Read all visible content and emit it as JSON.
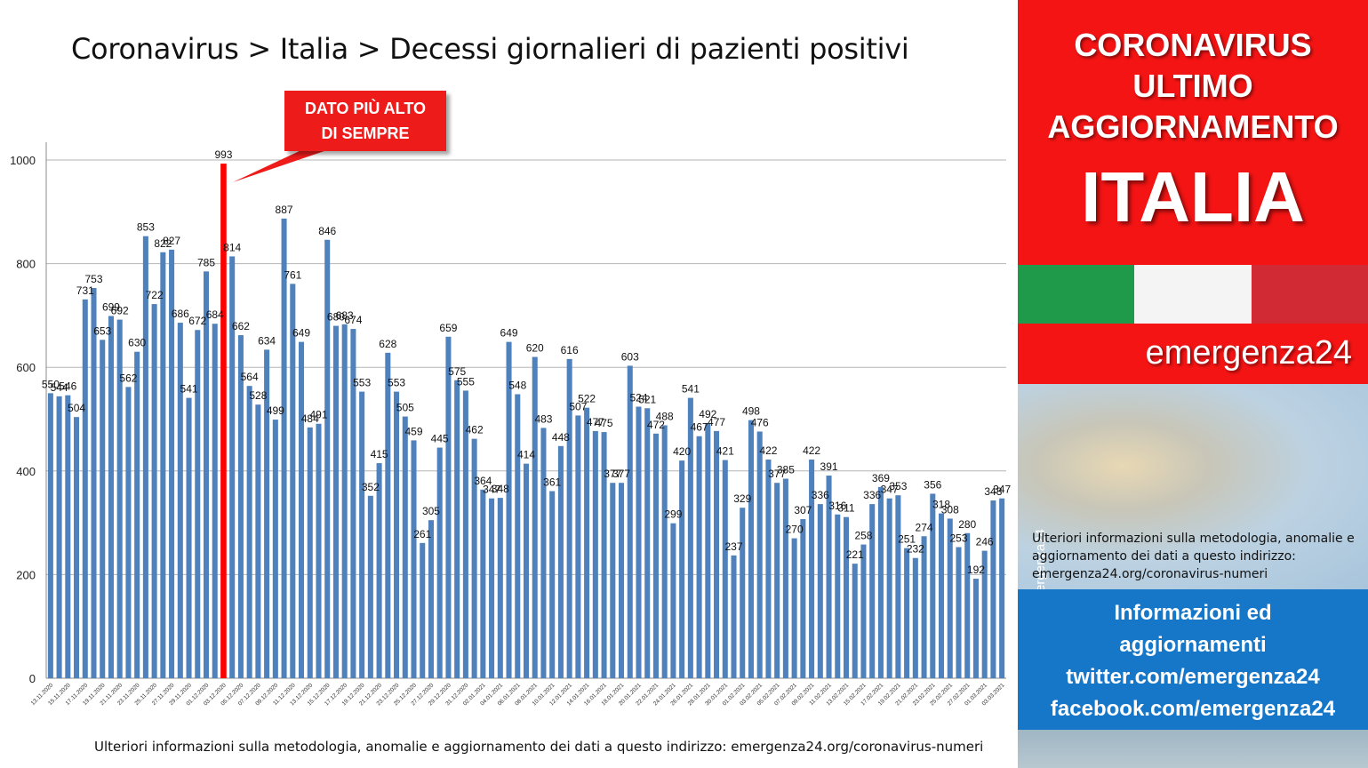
{
  "title": "Coronavirus > Italia > Decessi giornalieri di pazienti positivi",
  "callout": {
    "line1": "DATO PIÙ ALTO",
    "line2": "DI SEMPRE"
  },
  "footnote": "Ulteriori informazioni sulla metodologia, anomalie e aggiornamento dei dati a questo indirizzo: emergenza24.org/coronavirus-numeri",
  "panel": {
    "line1": "CORONAVIRUS",
    "line2": "ULTIMO",
    "line3": "AGGIORNAMENTO",
    "line4": "ITALIA",
    "brand": "emergenza24",
    "handle": "@emergenza24",
    "note": "Ulteriori informazioni sulla metodologia, anomalie e aggiornamento dei dati a questo indirizzo: emergenza24.org/coronavirus-numeri",
    "info1": "Informazioni ed",
    "info2": "aggiornamenti",
    "info3": "twitter.com/emergenza24",
    "info4": "facebook.com/emergenza24",
    "colors": {
      "red": "#f51414",
      "blue": "#1676c8",
      "flag_green": "#1e9a4a",
      "flag_white": "#f4f4f4",
      "flag_red": "#d12a35"
    }
  },
  "chart_data": {
    "type": "bar",
    "title": "",
    "xlabel": "",
    "ylabel": "",
    "ylim": [
      0,
      1000
    ],
    "yticks": [
      0,
      200,
      400,
      600,
      800,
      1000
    ],
    "grid": true,
    "bar_color": "#4f81bd",
    "highlight_color": "#ff0000",
    "highlight_value": 993,
    "values": [
      550,
      544,
      546,
      504,
      731,
      753,
      653,
      699,
      692,
      562,
      630,
      853,
      722,
      822,
      827,
      686,
      541,
      672,
      785,
      684,
      993,
      814,
      662,
      564,
      528,
      634,
      499,
      887,
      761,
      649,
      484,
      491,
      846,
      680,
      683,
      674,
      553,
      352,
      415,
      628,
      553,
      505,
      459,
      261,
      305,
      445,
      659,
      575,
      555,
      462,
      364,
      347,
      348,
      649,
      548,
      414,
      620,
      483,
      361,
      448,
      616,
      507,
      522,
      477,
      475,
      377,
      377,
      603,
      524,
      521,
      472,
      488,
      299,
      420,
      541,
      467,
      492,
      477,
      421,
      237,
      329,
      498,
      476,
      422,
      377,
      385,
      270,
      307,
      422,
      336,
      391,
      316,
      311,
      221,
      258,
      336,
      369,
      347,
      353,
      251,
      232,
      274,
      356,
      318,
      308,
      253,
      280,
      192,
      246,
      343,
      347
    ],
    "date_labels": [
      "13.11.2020",
      "15.11.2020",
      "17.11.2020",
      "19.11.2020",
      "21.11.2020",
      "23.11.2020",
      "25.11.2020",
      "27.11.2020",
      "29.11.2020",
      "01.12.2020",
      "03.12.2020",
      "05.12.2020",
      "07.12.2020",
      "09.12.2020",
      "11.12.2020",
      "13.12.2020",
      "15.12.2020",
      "17.12.2020",
      "19.12.2020",
      "21.12.2020",
      "23.12.2020",
      "25.12.2020",
      "27.12.2020",
      "29.12.2020",
      "31.12.2020",
      "02.01.2021",
      "04.01.2021",
      "06.01.2021",
      "08.01.2021",
      "10.01.2021",
      "12.01.2021",
      "14.01.2021",
      "16.01.2021",
      "18.01.2021",
      "20.01.2021",
      "22.01.2021",
      "24.01.2021",
      "26.01.2021",
      "28.01.2021",
      "30.01.2021",
      "01.02.2021",
      "03.02.2021",
      "05.02.2021",
      "07.02.2021",
      "09.02.2021",
      "11.02.2021",
      "13.02.2021",
      "15.02.2021",
      "17.02.2021",
      "19.02.2021",
      "21.02.2021",
      "23.02.2021",
      "25.02.2021",
      "27.02.2021",
      "01.03.2021",
      "03.03.2021"
    ]
  }
}
